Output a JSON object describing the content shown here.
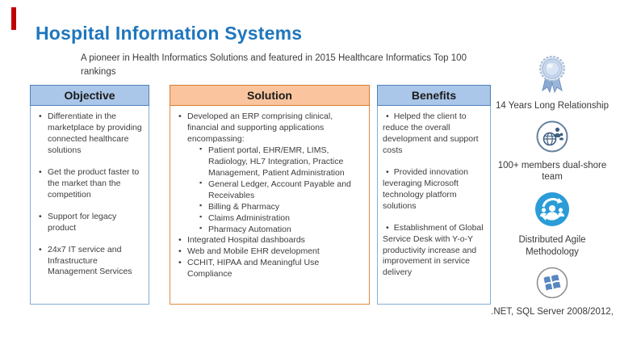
{
  "slide": {
    "title": "Hospital Information Systems",
    "subtitle": "A pioneer in Health Informatics Solutions and featured in 2015 Healthcare Informatics Top 100 rankings"
  },
  "accent_color": "#c00000",
  "theme": {
    "title_color": "#1f76bd",
    "blue_header_fill": "#aac6e8",
    "blue_header_border": "#4f81bd",
    "blue_body_border": "#86add4",
    "orange_header_fill": "#fac59e",
    "orange_header_border": "#d97b33",
    "orange_body_border": "#dd8a44"
  },
  "columns": [
    {
      "id": "objective",
      "header": "Objective",
      "style": "blue",
      "bullet_layout": "hanging",
      "spaced": true,
      "items": [
        {
          "text": "Differentiate in the marketplace by providing connected healthcare solutions"
        },
        {
          "text": "Get the product faster to the market than the competition"
        },
        {
          "text": "Support for legacy product"
        },
        {
          "text": "24x7 IT service and Infrastructure Management Services"
        }
      ]
    },
    {
      "id": "solution",
      "header": "Solution",
      "style": "orange",
      "bullet_layout": "hanging",
      "spaced": false,
      "items": [
        {
          "text": "Developed an ERP comprising clinical, financial and supporting applications encompassing:",
          "sub": [
            "Patient portal, EHR/EMR, LIMS, Radiology, HL7 Integration, Practice Management, Patient Administration",
            "General Ledger, Account Payable and Receivables",
            "Billing & Pharmacy",
            "Claims Administration",
            "Pharmacy Automation"
          ]
        },
        {
          "text": "Integrated Hospital dashboards"
        },
        {
          "text": "Web and Mobile EHR development"
        },
        {
          "text": "CCHIT, HIPAA and Meaningful Use Compliance"
        }
      ]
    },
    {
      "id": "benefits",
      "header": "Benefits",
      "style": "blue",
      "bullet_layout": "inline",
      "spaced": true,
      "items": [
        {
          "text": "Helped the client to reduce the overall development and support costs"
        },
        {
          "text": "Provided innovation leveraging Microsoft technology platform solutions"
        },
        {
          "text": "Establishment of Global Service Desk with Y-o-Y productivity increase and improvement in service delivery"
        }
      ]
    }
  ],
  "markers": {
    "bullet": "•",
    "subbullet": "▪"
  },
  "sidebar": {
    "items": [
      {
        "icon": "award-ribbon-icon",
        "label": "14 Years Long Relationship"
      },
      {
        "icon": "globe-team-icon",
        "label": "100+ members dual-shore team"
      },
      {
        "icon": "agile-cycle-icon",
        "label": "Distributed Agile Methodology"
      },
      {
        "icon": "windows-logo-icon",
        "label": ".NET, SQL Server 2008/2012,"
      }
    ]
  }
}
